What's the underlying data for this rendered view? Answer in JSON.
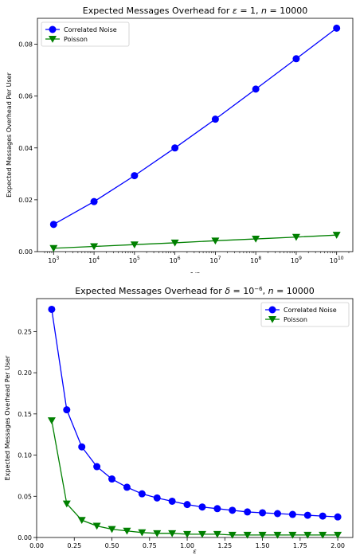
{
  "colors": {
    "correlated": "#0000ff",
    "poisson": "#008000"
  },
  "chart_data": [
    {
      "type": "line",
      "title": "Expected Messages Overhead for ε = 1, n = 10000",
      "xlabel": "1/δ",
      "ylabel": "Expected Messages Overhead Per User",
      "xscale": "log",
      "x": [
        1000,
        10000,
        100000,
        1000000,
        10000000,
        100000000,
        1000000000,
        10000000000
      ],
      "xticklabels": [
        "10^3",
        "10^4",
        "10^5",
        "10^6",
        "10^7",
        "10^8",
        "10^9",
        "10^10"
      ],
      "ylim": [
        0,
        0.09
      ],
      "yticks": [
        0,
        0.02,
        0.04,
        0.06,
        0.08
      ],
      "yticklabels": [
        "0.00",
        "0.02",
        "0.04",
        "0.06",
        "0.08"
      ],
      "legend_position": "top-left",
      "grid": false,
      "series": [
        {
          "name": "Correlated Noise",
          "color": "#0000ff",
          "marker": "circle",
          "values": [
            0.0105,
            0.0193,
            0.0293,
            0.04,
            0.0511,
            0.0627,
            0.0744,
            0.0862
          ]
        },
        {
          "name": "Poisson",
          "color": "#008000",
          "marker": "triangle-down",
          "values": [
            0.0013,
            0.002,
            0.0027,
            0.0034,
            0.0042,
            0.0049,
            0.0056,
            0.0064
          ]
        }
      ]
    },
    {
      "type": "line",
      "title": "Expected Messages Overhead for δ = 10^-6, n = 10000",
      "xlabel": "ε",
      "ylabel": "Expected Messages Overhead Per User",
      "xscale": "linear",
      "x": [
        0.1,
        0.2,
        0.3,
        0.4,
        0.5,
        0.6,
        0.7,
        0.8,
        0.9,
        1.0,
        1.1,
        1.2,
        1.3,
        1.4,
        1.5,
        1.6,
        1.7,
        1.8,
        1.9,
        2.0
      ],
      "xlim": [
        0,
        2.1
      ],
      "xticks": [
        0,
        0.25,
        0.5,
        0.75,
        1.0,
        1.25,
        1.5,
        1.75,
        2.0
      ],
      "xticklabels": [
        "0.00",
        "0.25",
        "0.50",
        "0.75",
        "1.00",
        "1.25",
        "1.50",
        "1.75",
        "2.00"
      ],
      "ylim": [
        0,
        0.29
      ],
      "yticks": [
        0,
        0.05,
        0.1,
        0.15,
        0.2,
        0.25
      ],
      "yticklabels": [
        "0.00",
        "0.05",
        "0.10",
        "0.15",
        "0.20",
        "0.25"
      ],
      "legend_position": "top-right",
      "grid": false,
      "series": [
        {
          "name": "Correlated Noise",
          "color": "#0000ff",
          "marker": "circle",
          "values": [
            0.277,
            0.155,
            0.11,
            0.086,
            0.071,
            0.061,
            0.053,
            0.048,
            0.044,
            0.04,
            0.037,
            0.035,
            0.033,
            0.031,
            0.03,
            0.029,
            0.028,
            0.027,
            0.026,
            0.025
          ]
        },
        {
          "name": "Poisson",
          "color": "#008000",
          "marker": "triangle-down",
          "values": [
            0.142,
            0.041,
            0.021,
            0.014,
            0.01,
            0.008,
            0.006,
            0.005,
            0.005,
            0.004,
            0.004,
            0.004,
            0.003,
            0.003,
            0.003,
            0.003,
            0.003,
            0.003,
            0.003,
            0.003
          ]
        }
      ]
    }
  ]
}
